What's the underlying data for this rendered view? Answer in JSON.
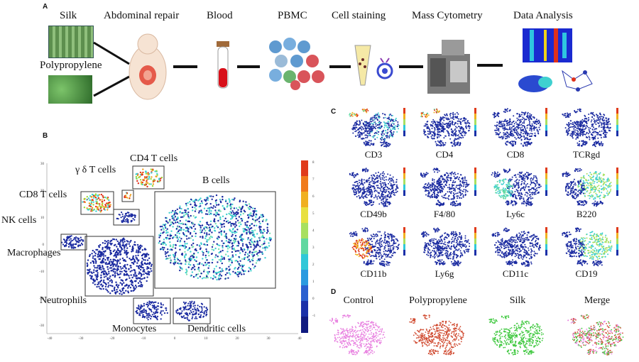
{
  "panels": {
    "a": "A",
    "b": "B",
    "c": "C",
    "d": "D"
  },
  "workflow": {
    "materials": [
      "Silk",
      "Polypropylene"
    ],
    "steps": [
      "Abdominal repair",
      "Blood",
      "PBMC",
      "Cell staining",
      "Mass Cytometry",
      "Data Analysis"
    ]
  },
  "tsne": {
    "clusters": [
      "CD4 T cells",
      "γ δ T cells",
      "B cells",
      "CD8 T cells",
      "NK cells",
      "Macrophages",
      "Neutrophils",
      "Monocytes",
      "Dendritic cells"
    ],
    "x_ticks": [
      "-40",
      "-30",
      "-20",
      "-10",
      "0",
      "10",
      "20",
      "30",
      "40"
    ],
    "y_ticks": [
      "30",
      "20",
      "10",
      "0",
      "-10",
      "-20",
      "-30"
    ],
    "colorbar_ticks": [
      "8",
      "7",
      "6",
      "5",
      "4",
      "3",
      "2",
      "1",
      "0",
      "-1"
    ]
  },
  "markers": [
    "CD3",
    "CD4",
    "CD8",
    "TCRgd",
    "CD49b",
    "F4/80",
    "Ly6c",
    "B220",
    "CD11b",
    "Ly6g",
    "CD11c",
    "CD19"
  ],
  "conditions": [
    "Control",
    "Polypropylene",
    "Silk",
    "Merge"
  ],
  "colors": {
    "low": "#1a2aa0",
    "mid": "#3fd0d0",
    "high": "#e0301a",
    "control": "#e880e0",
    "polypropylene": "#d04a30",
    "silk": "#3ec83e"
  }
}
